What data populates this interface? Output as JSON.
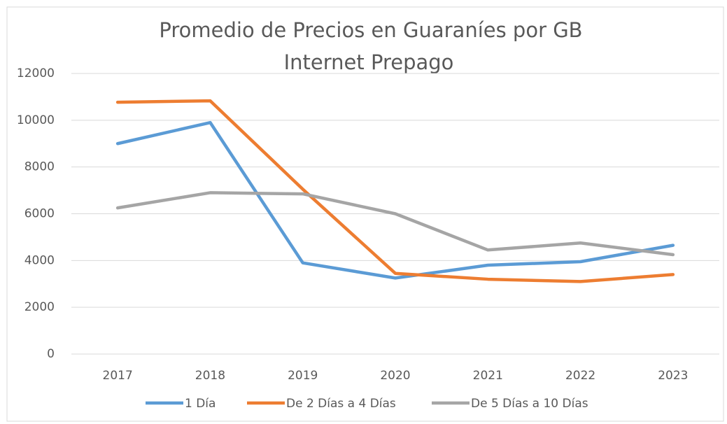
{
  "chart_data": {
    "type": "line",
    "title": [
      "Promedio de Precios en Guaraníes por GB",
      "Internet Prepago"
    ],
    "categories": [
      "2017",
      "2018",
      "2019",
      "2020",
      "2021",
      "2022",
      "2023"
    ],
    "series": [
      {
        "name": "1 Día",
        "color": "#5b9bd5",
        "values": [
          9000,
          9900,
          3900,
          3250,
          3800,
          3950,
          4650
        ]
      },
      {
        "name": "De 2 Días a 4 Días",
        "color": "#ed7d31",
        "values": [
          10770,
          10830,
          7050,
          3450,
          3200,
          3100,
          3400
        ]
      },
      {
        "name": "De 5 Días a 10 Días",
        "color": "#a5a5a5",
        "values": [
          6250,
          6900,
          6850,
          6000,
          4450,
          4750,
          4250
        ]
      }
    ],
    "ylim": [
      0,
      12000
    ],
    "yticks": [
      0,
      2000,
      4000,
      6000,
      8000,
      10000,
      12000
    ],
    "grid": true,
    "legend": "bottom"
  }
}
